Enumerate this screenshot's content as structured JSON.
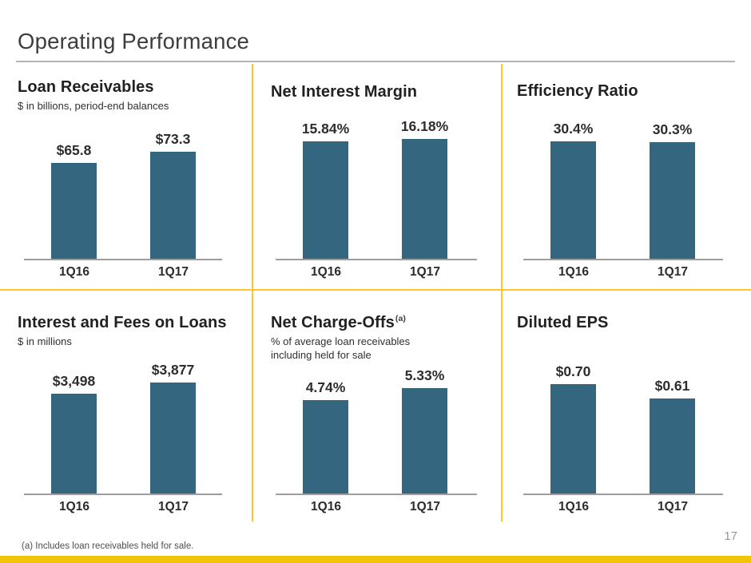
{
  "slide": {
    "title": "Operating Performance",
    "footnote": "(a)  Includes loan receivables held for sale.",
    "page_number": "17"
  },
  "colors": {
    "bar_teal": "#34667F",
    "divider_gold": "#FCC72E",
    "bottom_bar_gold": "#F2C408",
    "axis_gray": "#9D9D9D"
  },
  "chart_data": [
    {
      "type": "bar",
      "title": "Loan Receivables",
      "subtitle": "$ in billions, period-end balances",
      "categories": [
        "1Q16",
        "1Q17"
      ],
      "values": [
        65.8,
        73.3
      ],
      "value_labels": [
        "$65.8",
        "$73.3"
      ],
      "axes_hidden": true,
      "data_labels": true
    },
    {
      "type": "bar",
      "title": "Net Interest Margin",
      "categories": [
        "1Q16",
        "1Q17"
      ],
      "values": [
        15.84,
        16.18
      ],
      "value_labels": [
        "15.84%",
        "16.18%"
      ],
      "axes_hidden": true,
      "data_labels": true
    },
    {
      "type": "bar",
      "title": "Efficiency Ratio",
      "categories": [
        "1Q16",
        "1Q17"
      ],
      "values": [
        30.4,
        30.3
      ],
      "value_labels": [
        "30.4%",
        "30.3%"
      ],
      "axes_hidden": true,
      "data_labels": true
    },
    {
      "type": "bar",
      "title": "Interest and Fees on Loans",
      "subtitle": "$ in millions",
      "categories": [
        "1Q16",
        "1Q17"
      ],
      "values": [
        3498,
        3877
      ],
      "value_labels": [
        "$3,498",
        "$3,877"
      ],
      "axes_hidden": true,
      "data_labels": true
    },
    {
      "type": "bar",
      "title": "Net Charge-Offs",
      "title_sup": "(a)",
      "subtitle_lines": [
        "% of average loan receivables",
        "including held for sale"
      ],
      "categories": [
        "1Q16",
        "1Q17"
      ],
      "values": [
        4.74,
        5.33
      ],
      "value_labels": [
        "4.74%",
        "5.33%"
      ],
      "axes_hidden": true,
      "data_labels": true
    },
    {
      "type": "bar",
      "title": "Diluted EPS",
      "categories": [
        "1Q16",
        "1Q17"
      ],
      "values": [
        0.7,
        0.61
      ],
      "value_labels": [
        "$0.70",
        "$0.61"
      ],
      "axes_hidden": true,
      "data_labels": true
    }
  ]
}
